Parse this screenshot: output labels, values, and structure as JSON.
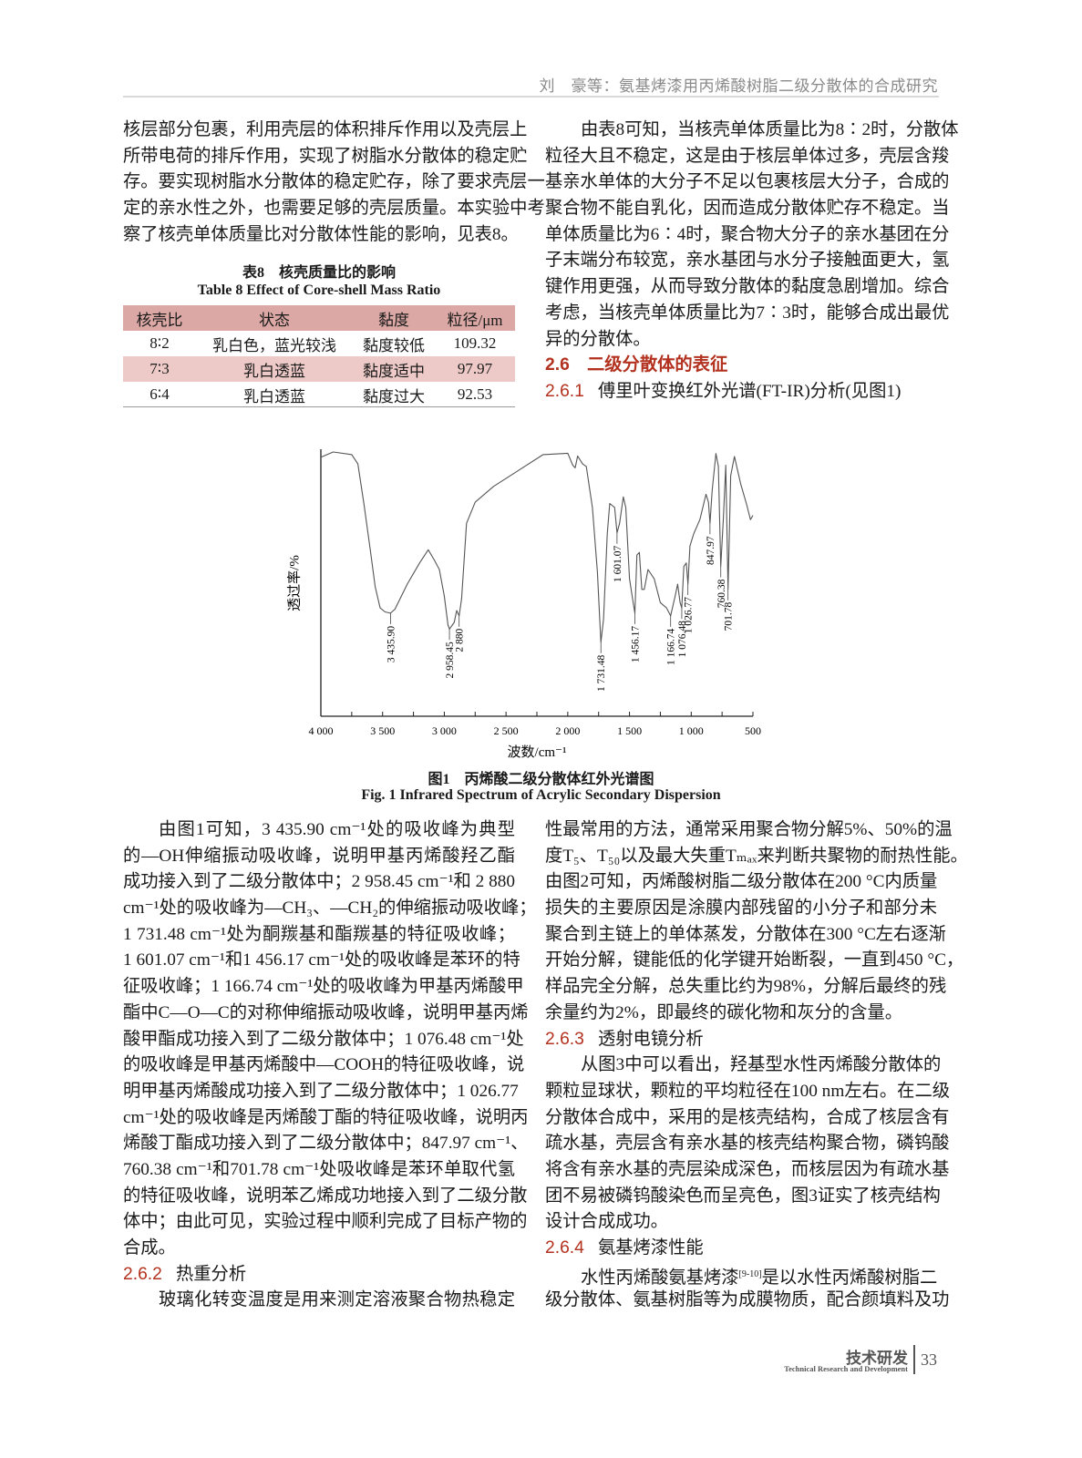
{
  "header": {
    "running_title": "刘　豪等：氨基烤漆用丙烯酸树脂二级分散体的合成研究"
  },
  "left_top": [
    {
      "type": "p",
      "indent": false,
      "lines": [
        "核层部分包裹，利用壳层的体积排斥作用以及壳层上",
        "所带电荷的排斥作用，实现了树脂水分散体的稳定贮",
        "存。要实现树脂水分散体的稳定贮存，除了要求壳层一",
        "定的亲水性之外，也需要足够的壳层质量。本实验中考",
        "察了核壳单体质量比对分散体性能的影响，见表8。"
      ]
    }
  ],
  "table8": {
    "title_cn": "表8　核壳质量比的影响",
    "title_en": "Table 8   Effect of Core-shell Mass Ratio",
    "headers": [
      "核壳比",
      "状态",
      "黏度",
      "粒径/μm"
    ],
    "rows": [
      [
        "8∶2",
        "乳白色，蓝光较浅",
        "黏度较低",
        "109.32"
      ],
      [
        "7∶3",
        "乳白透蓝",
        "黏度适中",
        "97.97"
      ],
      [
        "6∶4",
        "乳白透蓝",
        "黏度过大",
        "92.53"
      ]
    ]
  },
  "right_top": [
    {
      "type": "p",
      "indent": true,
      "lines": [
        "由表8可知，当核壳单体质量比为8∶2时，分散体",
        "粒径大且不稳定，这是由于核层单体过多，壳层含羧",
        "基亲水单体的大分子不足以包裹核层大分子，合成的",
        "聚合物不能自乳化，因而造成分散体贮存不稳定。当",
        "单体质量比为6∶4时，聚合物大分子的亲水基团在分",
        "子末端分布较宽，亲水基团与水分子接触面更大，氢",
        "键作用更强，从而导致分散体的黏度急剧增加。综合",
        "考虑，当核壳单体质量比为7∶3时，能够合成出最优",
        "异的分散体。"
      ]
    },
    {
      "type": "h2",
      "num": "2.6",
      "title": "二级分散体的表征"
    },
    {
      "type": "h3",
      "num": "2.6.1",
      "title": "傅里叶变换红外光谱(FT-IR)分析(见图1)"
    }
  ],
  "chart_data": {
    "type": "line",
    "title": "",
    "xlabel": "波数/cm⁻¹",
    "ylabel": "透过率/%",
    "xlim": [
      4000,
      500
    ],
    "x_reversed": true,
    "x_ticks": [
      "4 000",
      "3 500",
      "3 000",
      "2 500",
      "2 000",
      "1 500",
      "1 000",
      "500"
    ],
    "x_tick_values": [
      4000,
      3500,
      3000,
      2500,
      2000,
      1500,
      1000,
      500
    ],
    "y_ticks_shown": false,
    "grid": false,
    "series": [
      {
        "color": "#555555",
        "x": [
          4000,
          3900,
          3750,
          3700,
          3650,
          3600,
          3560,
          3520,
          3480,
          3435.9,
          3400,
          3300,
          3200,
          3130,
          3080,
          3040,
          3000,
          2970,
          2958.45,
          2920,
          2900,
          2880,
          2860,
          2820,
          2750,
          2600,
          2400,
          2200,
          2000,
          1960,
          1940,
          1920,
          1880,
          1850,
          1800,
          1760,
          1740,
          1731.48,
          1710,
          1680,
          1660,
          1620,
          1601.07,
          1580,
          1550,
          1530,
          1500,
          1470,
          1456.17,
          1440,
          1420,
          1400,
          1380,
          1350,
          1300,
          1250,
          1200,
          1166.74,
          1130,
          1110,
          1090,
          1076.48,
          1060,
          1040,
          1026.77,
          1010,
          980,
          930,
          880,
          860,
          847.97,
          830,
          800,
          780,
          760.38,
          740,
          720,
          701.78,
          680,
          650,
          600,
          550,
          520,
          500
        ],
        "y": [
          98,
          100,
          99,
          95.5,
          80,
          63,
          49,
          41,
          39.5,
          39,
          40.5,
          50,
          58,
          63,
          59,
          55.5,
          45.5,
          34.5,
          33,
          35.5,
          40,
          38,
          44.5,
          73,
          81,
          87,
          93,
          99,
          99.5,
          95,
          94,
          98.5,
          95.5,
          94.5,
          79,
          54.5,
          35.5,
          28,
          36.7,
          69,
          80.5,
          79,
          69.4,
          73,
          83,
          79,
          52,
          43,
          39,
          61,
          62,
          48,
          48,
          55.5,
          52,
          43,
          41,
          38,
          45.5,
          50,
          43,
          41,
          56.7,
          58,
          50,
          64.4,
          69,
          74.4,
          84,
          81,
          73,
          85.5,
          99.4,
          94.5,
          56.7,
          74.4,
          95,
          48,
          91,
          98.3,
          88,
          80,
          74.4,
          76
        ]
      }
    ],
    "peak_labels": [
      {
        "x": 3435.9,
        "label": "3 435.90"
      },
      {
        "x": 2958.45,
        "label": "2 958.45"
      },
      {
        "x": 2880,
        "label": "2 880"
      },
      {
        "x": 1731.48,
        "label": "1 731.48"
      },
      {
        "x": 1601.07,
        "label": "1 601.07"
      },
      {
        "x": 1456.17,
        "label": "1 456.17"
      },
      {
        "x": 1166.74,
        "label": "1 166.74"
      },
      {
        "x": 1076.48,
        "label": "1 076.48"
      },
      {
        "x": 1026.77,
        "label": "1 026.77"
      },
      {
        "x": 847.97,
        "label": "847.97"
      },
      {
        "x": 760.38,
        "label": "760.38"
      },
      {
        "x": 701.78,
        "label": "701.78"
      }
    ]
  },
  "figure1": {
    "caption_cn": "图1　丙烯酸二级分散体红外光谱图",
    "caption_en": "Fig. 1   Infrared Spectrum of Acrylic Secondary Dispersion"
  },
  "left_bottom": [
    {
      "type": "p",
      "indent": true,
      "lines": [
        "由图1可知，3 435.90 cm⁻¹处的吸收峰为典型",
        "的—OH伸缩振动吸收峰，说明甲基丙烯酸羟乙酯",
        "成功接入到了二级分散体中；2 958.45 cm⁻¹和 2 880",
        "cm⁻¹处的吸收峰为—CH₃、—CH₂的伸缩振动吸收峰；",
        "1 731.48 cm⁻¹处为酮羰基和酯羰基的特征吸收峰；",
        "1 601.07 cm⁻¹和1 456.17 cm⁻¹处的吸收峰是苯环的特",
        "征吸收峰；1 166.74 cm⁻¹处的吸收峰为甲基丙烯酸甲",
        "酯中C—O—C的对称伸缩振动吸收峰，说明甲基丙烯",
        "酸甲酯成功接入到了二级分散体中；1 076.48 cm⁻¹处",
        "的吸收峰是甲基丙烯酸中—COOH的特征吸收峰，说",
        "明甲基丙烯酸成功接入到了二级分散体中；1 026.77",
        "cm⁻¹处的吸收峰是丙烯酸丁酯的特征吸收峰，说明丙",
        "烯酸丁酯成功接入到了二级分散体中；847.97 cm⁻¹、",
        "760.38 cm⁻¹和701.78 cm⁻¹处吸收峰是苯环单取代氢",
        "的特征吸收峰，说明苯乙烯成功地接入到了二级分散",
        "体中；由此可见，实验过程中顺利完成了目标产物的",
        "合成。"
      ]
    },
    {
      "type": "h3",
      "num": "2.6.2",
      "title": "热重分析"
    },
    {
      "type": "p",
      "indent": true,
      "cont": true,
      "lines": [
        "玻璃化转变温度是用来测定溶液聚合物热稳定"
      ]
    }
  ],
  "right_bottom": [
    {
      "type": "p",
      "indent": false,
      "lines": [
        "性最常用的方法，通常采用聚合物分解5%、50%的温",
        "度T₅、T₅₀以及最大失重Tₘₐₓ来判断共聚物的耐热性能。",
        "由图2可知，丙烯酸树脂二级分散体在200 °C内质量",
        "损失的主要原因是涂膜内部残留的小分子和部分未",
        "聚合到主链上的单体蒸发，分散体在300 °C左右逐渐",
        "开始分解，键能低的化学键开始断裂，一直到450 °C，",
        "样品完全分解，总失重比约为98%，分解后最终的残",
        "余量约为2%，即最终的碳化物和灰分的含量。"
      ]
    },
    {
      "type": "h3",
      "num": "2.6.3",
      "title": "透射电镜分析"
    },
    {
      "type": "p",
      "indent": true,
      "lines": [
        "从图3中可以看出，羟基型水性丙烯酸分散体的",
        "颗粒显球状，颗粒的平均粒径在100 nm左右。在二级",
        "分散体合成中，采用的是核壳结构，合成了核层含有",
        "疏水基，壳层含有亲水基的核壳结构聚合物，磷钨酸",
        "将含有亲水基的壳层染成深色，而核层因为有疏水基",
        "团不易被磷钨酸染色而呈亮色，图3证实了核壳结构",
        "设计合成成功。"
      ]
    },
    {
      "type": "h3",
      "num": "2.6.4",
      "title": "氨基烤漆性能"
    },
    {
      "type": "p",
      "indent": true,
      "cont": true,
      "lines": [
        [
          "水性丙烯酸氨基烤漆",
          {
            "sup": "[9-10]"
          },
          "是以水性丙烯酸树脂二"
        ],
        "级分散体、氨基树脂等为成膜物质，配合颜填料及功"
      ]
    }
  ],
  "footer": {
    "section_cn": "技术研发",
    "section_en": "Technical Research and Development",
    "page_number": "33"
  }
}
